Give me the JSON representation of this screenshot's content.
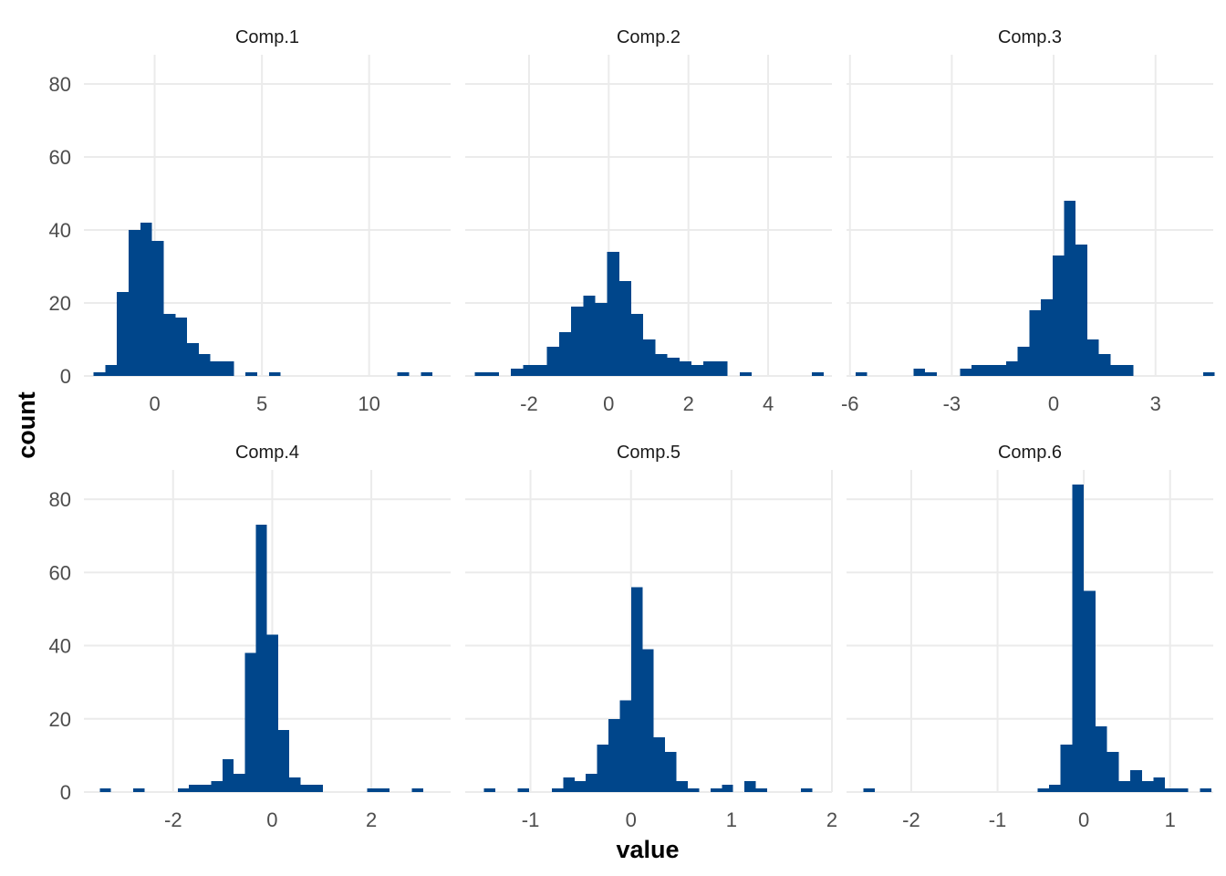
{
  "chart_data": {
    "type": "bar",
    "subtype": "faceted histogram",
    "xlabel": "value",
    "ylabel": "count",
    "ylim": [
      0,
      88
    ],
    "y_ticks": [
      0,
      20,
      40,
      60,
      80
    ],
    "bar_color": "#00468B",
    "background": "#FFFFFF",
    "grid": true,
    "facets": [
      {
        "title": "Comp.1",
        "xlim": [
          -3.3,
          13.8
        ],
        "x_ticks": [
          0,
          5,
          10
        ],
        "bin_start": -2.85,
        "bin_width": 0.545,
        "counts": [
          1,
          3,
          23,
          40,
          42,
          37,
          17,
          16,
          9,
          6,
          4,
          4,
          0,
          1,
          0,
          1,
          0,
          0,
          0,
          0,
          0,
          0,
          0,
          0,
          0,
          0,
          1,
          0,
          1
        ]
      },
      {
        "title": "Comp.2",
        "xlim": [
          -3.6,
          5.6
        ],
        "x_ticks": [
          -2,
          0,
          2,
          4
        ],
        "bin_start": -3.36,
        "bin_width": 0.302,
        "counts": [
          1,
          1,
          0,
          2,
          3,
          3,
          8,
          12,
          19,
          22,
          20,
          34,
          26,
          17,
          10,
          6,
          5,
          4,
          3,
          4,
          4,
          0,
          1,
          0,
          0,
          0,
          0,
          0,
          1
        ]
      },
      {
        "title": "Comp.3",
        "xlim": [
          -6.1,
          4.7
        ],
        "x_ticks": [
          -6,
          -3,
          0,
          3
        ],
        "bin_start": -5.83,
        "bin_width": 0.341,
        "counts": [
          1,
          0,
          0,
          0,
          0,
          2,
          1,
          0,
          0,
          2,
          3,
          3,
          3,
          4,
          8,
          18,
          21,
          33,
          48,
          36,
          10,
          6,
          3,
          3,
          0,
          0,
          0,
          0,
          0,
          0,
          1
        ]
      },
      {
        "title": "Comp.4",
        "xlim": [
          -3.8,
          3.6
        ],
        "x_ticks": [
          -2,
          0,
          2
        ],
        "bin_start": -3.48,
        "bin_width": 0.225,
        "counts": [
          1,
          0,
          0,
          1,
          0,
          0,
          0,
          1,
          2,
          2,
          3,
          9,
          5,
          38,
          73,
          43,
          17,
          4,
          2,
          2,
          0,
          0,
          0,
          0,
          1,
          1,
          0,
          0,
          1
        ]
      },
      {
        "title": "Comp.5",
        "xlim": [
          -1.65,
          2.0
        ],
        "x_ticks": [
          -1,
          0,
          1,
          2
        ],
        "bin_start": -1.465,
        "bin_width": 0.1128,
        "counts": [
          1,
          0,
          0,
          1,
          0,
          0,
          1,
          4,
          3,
          5,
          13,
          20,
          25,
          56,
          39,
          15,
          11,
          3,
          1,
          0,
          1,
          2,
          0,
          3,
          1,
          0,
          0,
          0,
          1
        ]
      },
      {
        "title": "Comp.6",
        "xlim": [
          -2.75,
          1.5
        ],
        "x_ticks": [
          -2,
          -1,
          0,
          1
        ],
        "bin_start": -2.555,
        "bin_width": 0.1345,
        "counts": [
          1,
          0,
          0,
          0,
          0,
          0,
          0,
          0,
          0,
          0,
          0,
          0,
          0,
          0,
          0,
          1,
          2,
          13,
          84,
          55,
          18,
          11,
          3,
          6,
          3,
          4,
          1,
          1,
          0,
          1
        ]
      }
    ]
  }
}
